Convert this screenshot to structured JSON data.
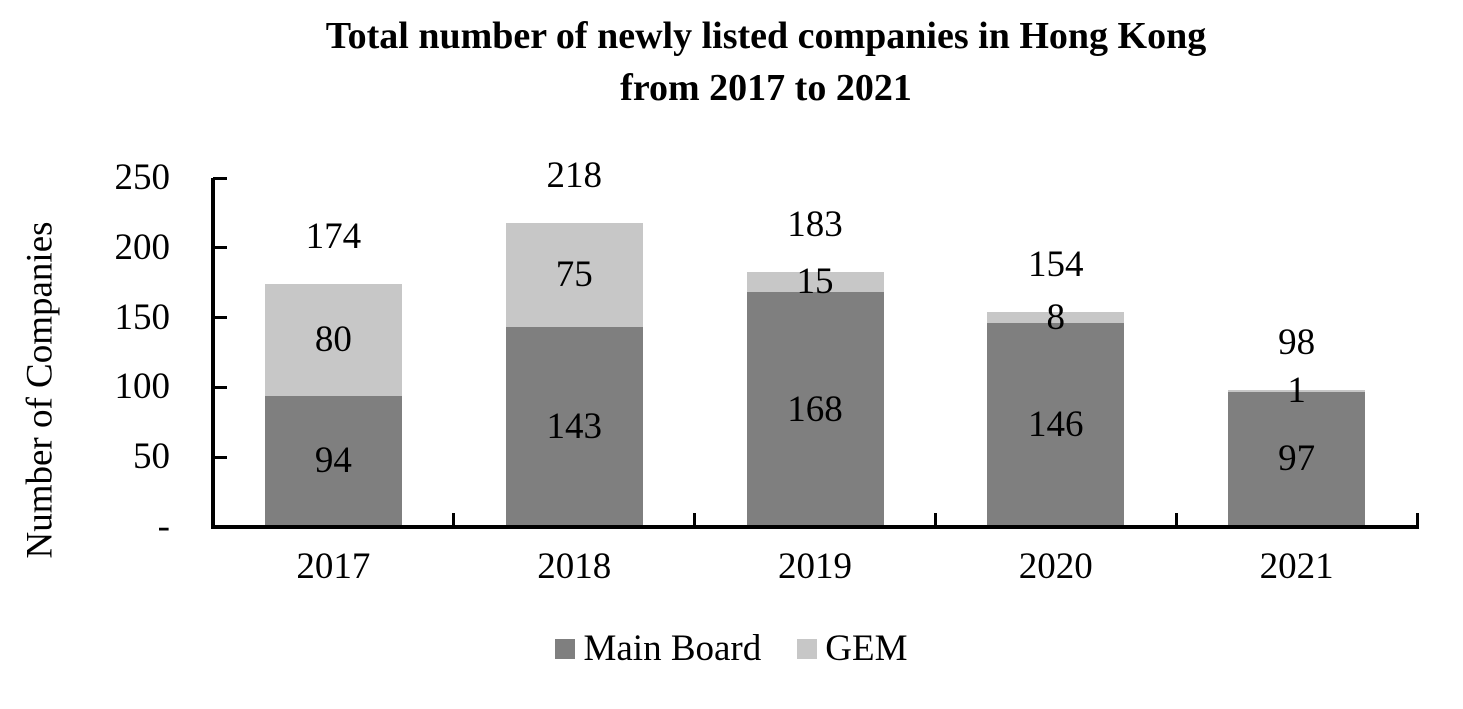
{
  "title": {
    "line1": "Total number of newly listed companies in Hong Kong",
    "line2": "from 2017 to 2021"
  },
  "y_axis": {
    "label": "Number of Companies",
    "ticks": [
      {
        "value": 250,
        "label": "250"
      },
      {
        "value": 200,
        "label": "200"
      },
      {
        "value": 150,
        "label": "150"
      },
      {
        "value": 100,
        "label": "100"
      },
      {
        "value": 50,
        "label": "50"
      },
      {
        "value": 0,
        "label": "-"
      }
    ]
  },
  "chart_data": {
    "type": "bar",
    "stacked": true,
    "title": "Total number of newly listed companies in Hong Kong from 2017 to 2021",
    "xlabel": "",
    "ylabel": "Number of Companies",
    "categories": [
      "2017",
      "2018",
      "2019",
      "2020",
      "2021"
    ],
    "series": [
      {
        "name": "Main Board",
        "color": "#7f7f7f",
        "values": [
          94,
          143,
          168,
          146,
          97
        ]
      },
      {
        "name": "GEM",
        "color": "#c7c7c7",
        "values": [
          80,
          75,
          15,
          8,
          1
        ]
      }
    ],
    "totals": [
      174,
      218,
      183,
      154,
      98
    ],
    "ylim": [
      0,
      250
    ],
    "yticks": [
      0,
      50,
      100,
      150,
      200,
      250
    ],
    "grid": false,
    "legend_position": "bottom",
    "show_segment_labels": true,
    "show_total_labels": true
  },
  "legend": {
    "items": [
      {
        "label": "Main Board",
        "color": "#7f7f7f"
      },
      {
        "label": "GEM",
        "color": "#c7c7c7"
      }
    ]
  }
}
